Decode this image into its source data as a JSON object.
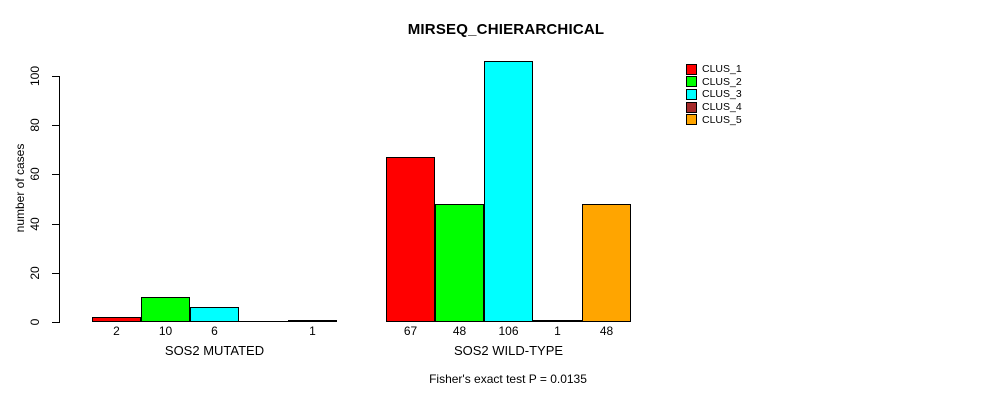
{
  "chart_data": {
    "type": "bar",
    "title": "MIRSEQ_CHIERARCHICAL",
    "ylabel": "number of cases",
    "xlabel": "",
    "yticks": [
      0,
      20,
      40,
      60,
      80,
      100
    ],
    "ylim": [
      0,
      106
    ],
    "grid": false,
    "legend_position": "top-right",
    "series_names": [
      "CLUS_1",
      "CLUS_2",
      "CLUS_3",
      "CLUS_4",
      "CLUS_5"
    ],
    "colors": [
      "#FF0000",
      "#00FF00",
      "#00FFFF",
      "#A52A2A",
      "#FFA500"
    ],
    "groups": [
      {
        "label": "SOS2 MUTATED",
        "values": [
          2,
          10,
          6,
          0,
          1
        ],
        "bar_labels": [
          "2",
          "10",
          "6",
          "",
          "1"
        ]
      },
      {
        "label": "SOS2 WILD-TYPE",
        "values": [
          67,
          48,
          106,
          1,
          48
        ],
        "bar_labels": [
          "67",
          "48",
          "106",
          "1",
          "48"
        ]
      }
    ],
    "annotation": "Fisher's exact test P = 0.0135"
  }
}
